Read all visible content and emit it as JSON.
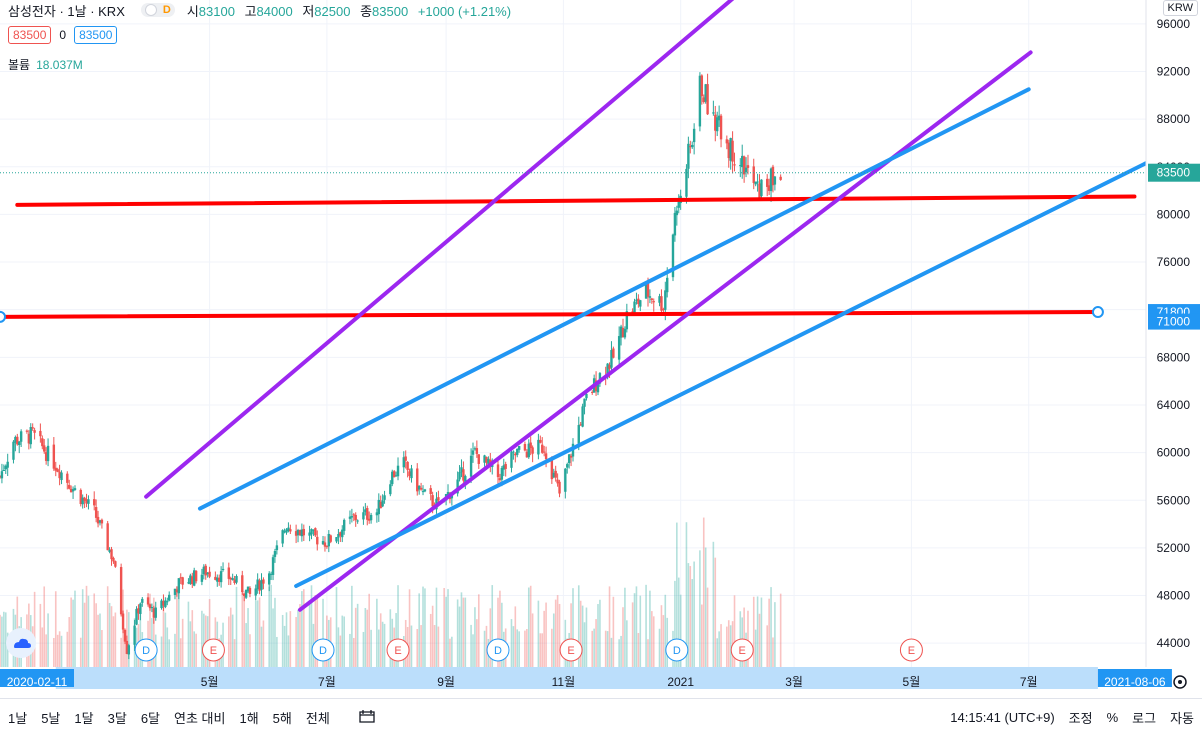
{
  "header": {
    "symbol": "삼성전자 · 1날 · KRX",
    "open_label": "시",
    "open_value": "83100",
    "high_label": "고",
    "high_value": "84000",
    "low_label": "저",
    "low_value": "82500",
    "close_label": "종",
    "close_value": "83500",
    "change": "+1000 (+1.21%)",
    "toggle_label": "D"
  },
  "price_boxes": {
    "bid": "83500",
    "spread": "0",
    "ask": "83500"
  },
  "volume": {
    "label": "볼륨",
    "value": "18.037M"
  },
  "currency": "KRW",
  "colors": {
    "up": "#26a69a",
    "down": "#ef5350",
    "red_line": "#ff0000",
    "purple_line": "#9c27f0",
    "blue_line": "#2196f3",
    "axis_highlight": "#2196f3"
  },
  "chart_data": {
    "type": "candlestick",
    "title": "삼성전자 · 1날 · KRX",
    "x_range": [
      "2020-01-13",
      "2021-08-31"
    ],
    "ylim": [
      42000,
      98000
    ],
    "y_ticks": [
      44000,
      48000,
      52000,
      56000,
      60000,
      64000,
      68000,
      72000,
      76000,
      80000,
      84000,
      88000,
      92000,
      96000
    ],
    "x_tick_labels": [
      {
        "date": "2020-05-01",
        "label": "5월"
      },
      {
        "date": "2020-07-01",
        "label": "7월"
      },
      {
        "date": "2020-09-01",
        "label": "9월"
      },
      {
        "date": "2020-11-01",
        "label": "11월"
      },
      {
        "date": "2021-01-01",
        "label": "2021"
      },
      {
        "date": "2021-03-01",
        "label": "3월"
      },
      {
        "date": "2021-05-01",
        "label": "5월"
      },
      {
        "date": "2021-07-01",
        "label": "7월"
      }
    ],
    "crosshair_start_date": "2020-02-11",
    "crosshair_end_date": "2021-08-06",
    "last_price": 83500,
    "highlight_prices": [
      71800,
      71000
    ],
    "price_waypoints": [
      [
        "2020-01-13",
        58000
      ],
      [
        "2020-01-20",
        61000
      ],
      [
        "2020-01-30",
        61500
      ],
      [
        "2020-02-11",
        59000
      ],
      [
        "2020-02-20",
        57000
      ],
      [
        "2020-03-02",
        55000
      ],
      [
        "2020-03-12",
        51000
      ],
      [
        "2020-03-19",
        43500
      ],
      [
        "2020-03-26",
        47500
      ],
      [
        "2020-04-03",
        46500
      ],
      [
        "2020-04-15",
        49000
      ],
      [
        "2020-04-29",
        50000
      ],
      [
        "2020-05-12",
        49500
      ],
      [
        "2020-05-22",
        48000
      ],
      [
        "2020-06-01",
        50000
      ],
      [
        "2020-06-10",
        54000
      ],
      [
        "2020-06-22",
        53000
      ],
      [
        "2020-07-01",
        52500
      ],
      [
        "2020-07-15",
        54500
      ],
      [
        "2020-07-27",
        55000
      ],
      [
        "2020-08-03",
        58000
      ],
      [
        "2020-08-10",
        59000
      ],
      [
        "2020-08-20",
        56500
      ],
      [
        "2020-08-28",
        55500
      ],
      [
        "2020-09-07",
        57500
      ],
      [
        "2020-09-16",
        60000
      ],
      [
        "2020-09-28",
        58000
      ],
      [
        "2020-10-08",
        60000
      ],
      [
        "2020-10-22",
        60500
      ],
      [
        "2020-10-30",
        56500
      ],
      [
        "2020-11-05",
        60000
      ],
      [
        "2020-11-13",
        64500
      ],
      [
        "2020-11-20",
        66500
      ],
      [
        "2020-11-27",
        68000
      ],
      [
        "2020-12-04",
        71500
      ],
      [
        "2020-12-14",
        73500
      ],
      [
        "2020-12-23",
        72500
      ],
      [
        "2020-12-30",
        81000
      ],
      [
        "2021-01-08",
        87000
      ],
      [
        "2021-01-11",
        91000
      ],
      [
        "2021-01-20",
        87500
      ],
      [
        "2021-01-27",
        85500
      ],
      [
        "2021-02-03",
        84000
      ],
      [
        "2021-02-10",
        82000
      ],
      [
        "2021-02-18",
        83000
      ],
      [
        "2021-02-23",
        83500
      ]
    ],
    "drawn_lines": [
      {
        "color": "red",
        "from": [
          "2020-01-22",
          80800
        ],
        "to": [
          "2021-08-25",
          81500
        ]
      },
      {
        "color": "red",
        "from": [
          "2020-01-13",
          71400
        ],
        "to": [
          "2021-08-06",
          71800
        ],
        "handles": true
      },
      {
        "color": "purple",
        "from": [
          "2020-03-29",
          56300
        ],
        "to": [
          "2021-03-12",
          104000
        ]
      },
      {
        "color": "purple",
        "from": [
          "2020-06-17",
          46800
        ],
        "to": [
          "2021-07-02",
          93600
        ]
      },
      {
        "color": "blue",
        "from": [
          "2020-04-26",
          55300
        ],
        "to": [
          "2021-07-01",
          90500
        ]
      },
      {
        "color": "blue",
        "from": [
          "2020-06-15",
          48800
        ],
        "to": [
          "2021-08-31",
          84300
        ]
      }
    ],
    "event_markers": [
      {
        "date": "2020-03-29",
        "label": "D"
      },
      {
        "date": "2020-05-03",
        "label": "E"
      },
      {
        "date": "2020-06-29",
        "label": "D"
      },
      {
        "date": "2020-08-07",
        "label": "E"
      },
      {
        "date": "2020-09-28",
        "label": "D"
      },
      {
        "date": "2020-11-05",
        "label": "E"
      },
      {
        "date": "2020-12-30",
        "label": "D"
      },
      {
        "date": "2021-02-02",
        "label": "E"
      },
      {
        "date": "2021-05-01",
        "label": "E"
      }
    ]
  },
  "bottom_bar": {
    "ranges": [
      "1날",
      "5날",
      "1달",
      "3달",
      "6달",
      "연초 대비",
      "1해",
      "5해",
      "전체"
    ],
    "time": "14:15:41 (UTC+9)",
    "right_items": [
      "조정",
      "%",
      "로그",
      "자동"
    ]
  }
}
